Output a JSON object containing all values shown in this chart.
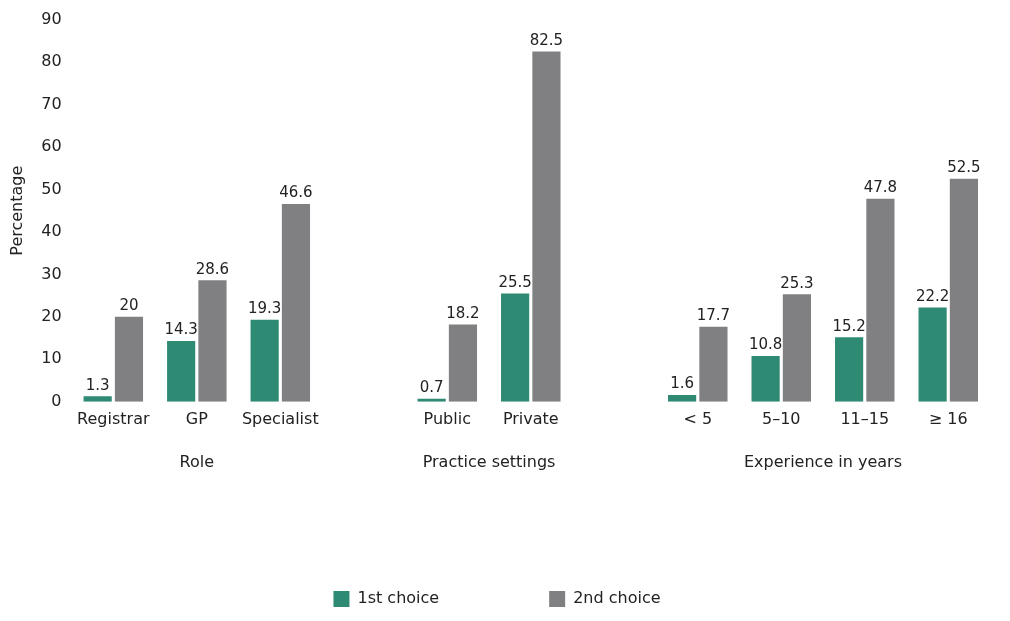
{
  "chart_data": {
    "type": "bar",
    "ylabel": "Percentage",
    "categories": [
      "Registrar",
      "GP",
      "Specialist",
      null,
      "Public",
      "Private",
      null,
      "< 5",
      "5–10",
      "11–15",
      "≥ 16"
    ],
    "series": [
      {
        "name": "1st choice",
        "color": "#2f8a74",
        "values": [
          1.3,
          14.3,
          19.3,
          null,
          0.7,
          25.5,
          null,
          1.6,
          10.8,
          15.2,
          22.2
        ]
      },
      {
        "name": "2nd choice",
        "color": "#808083",
        "values": [
          20,
          28.6,
          46.6,
          null,
          18.2,
          82.5,
          null,
          17.7,
          25.3,
          47.8,
          52.5
        ]
      }
    ],
    "ylim": [
      0,
      90
    ],
    "yticks": [
      0,
      10,
      20,
      30,
      40,
      50,
      60,
      70,
      80,
      90
    ],
    "grid": false,
    "legend": "bottom",
    "data_labels": true,
    "annotations": [
      "Role",
      "Practice settings",
      "Experience in years"
    ]
  }
}
